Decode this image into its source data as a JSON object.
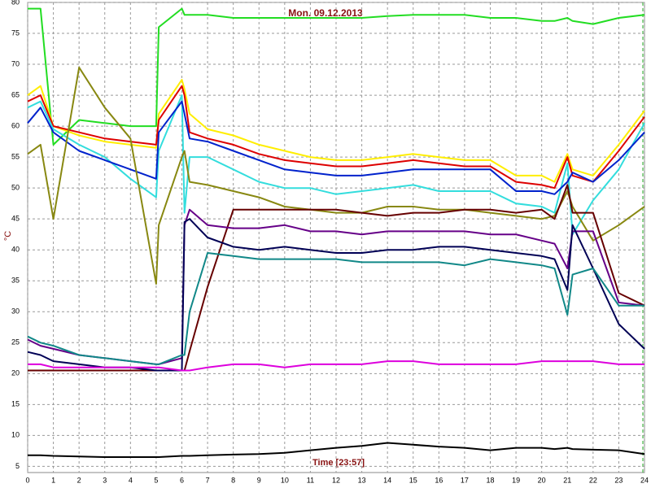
{
  "chart_data": {
    "type": "line",
    "title": "Mon. 09.12.2013",
    "x_label": "Time [23:57]",
    "y_label": "°C",
    "x": [
      0,
      0.5,
      1,
      2,
      3,
      4,
      5,
      5.1,
      6,
      6.1,
      6.3,
      7,
      8,
      9,
      10,
      11,
      12,
      13,
      14,
      15,
      16,
      17,
      18,
      19,
      20,
      20.5,
      21,
      21.2,
      22,
      23,
      24
    ],
    "xlim": [
      0,
      24
    ],
    "xticks": [
      0,
      1,
      2,
      3,
      4,
      5,
      6,
      7,
      8,
      9,
      10,
      11,
      12,
      13,
      14,
      15,
      16,
      17,
      18,
      19,
      20,
      21,
      22,
      23,
      24
    ],
    "ylim": [
      4,
      80
    ],
    "yticks": [
      5,
      10,
      15,
      20,
      25,
      30,
      35,
      40,
      45,
      50,
      55,
      60,
      65,
      70,
      75,
      80
    ],
    "grid": true,
    "series": [
      {
        "color": "#22dd22",
        "values": [
          79,
          79,
          57,
          61,
          60.5,
          60,
          60,
          76,
          79,
          78,
          78,
          78,
          77.5,
          77.5,
          77.5,
          77.5,
          77.5,
          77.5,
          77.8,
          78,
          78,
          78,
          77.5,
          77.5,
          77,
          77,
          77.5,
          77,
          76.5,
          77.5,
          78
        ]
      },
      {
        "color": "#ffee00",
        "values": [
          65,
          66.5,
          60,
          58.5,
          57.5,
          57,
          56.5,
          62,
          67.5,
          66,
          62,
          59.5,
          58.5,
          57,
          56,
          55,
          54.5,
          54.5,
          55,
          55.5,
          55,
          54.5,
          54.5,
          52,
          52,
          51,
          55.5,
          53,
          52,
          57,
          62.5
        ]
      },
      {
        "color": "#dd0000",
        "values": [
          64,
          65,
          60,
          59,
          58,
          57.5,
          57,
          61,
          66.5,
          65,
          59,
          58,
          57,
          55.5,
          54.5,
          54,
          53.5,
          53.5,
          54,
          54.5,
          54,
          53.5,
          53.5,
          51,
          50.5,
          50,
          55,
          52,
          51,
          56,
          61.5
        ]
      },
      {
        "color": "#33dddd",
        "values": [
          63,
          64,
          59.5,
          57,
          55,
          51.5,
          48.5,
          56,
          65,
          46,
          55,
          55,
          53,
          51,
          50,
          50,
          49,
          49.5,
          50,
          50.5,
          49.5,
          49.5,
          49.5,
          47.5,
          47,
          46,
          54,
          42.5,
          48,
          53,
          60.5
        ]
      },
      {
        "color": "#0022cc",
        "values": [
          60.5,
          63,
          59,
          56,
          54.5,
          53,
          51.5,
          59,
          64,
          62,
          58,
          57.5,
          56,
          54.5,
          53,
          52.5,
          52,
          52,
          52.5,
          53,
          53,
          53,
          53,
          49.5,
          49.5,
          49,
          51,
          52.5,
          51,
          54.5,
          59
        ]
      },
      {
        "color": "#888811",
        "values": [
          55.5,
          57,
          45,
          69.5,
          63,
          58,
          34.5,
          44,
          55,
          56,
          51,
          50.5,
          49.5,
          48.5,
          47,
          46.5,
          46,
          46,
          47,
          47,
          46.5,
          46.5,
          46,
          45.5,
          45,
          45.5,
          49.5,
          47,
          41.5,
          44,
          47
        ]
      },
      {
        "color": "#660000",
        "values": [
          20.5,
          20.5,
          20.5,
          20.5,
          20.5,
          20.5,
          20.5,
          20.5,
          20.5,
          20.5,
          23.6,
          34,
          46.5,
          46.5,
          46.5,
          46.5,
          46.5,
          46,
          45.5,
          46,
          46,
          46.5,
          46.5,
          46,
          46.5,
          45,
          50.5,
          46,
          46,
          33,
          31
        ]
      },
      {
        "color": "#660088",
        "values": [
          25.5,
          24.5,
          24,
          23,
          22.5,
          22,
          21.5,
          21.5,
          22.5,
          44,
          46.5,
          44,
          43.5,
          43.5,
          44,
          43,
          43,
          42.5,
          43,
          43,
          43,
          43,
          42.5,
          42.5,
          41.5,
          41,
          37,
          43,
          43,
          31.5,
          31
        ]
      },
      {
        "color": "#000055",
        "values": [
          23.5,
          23,
          22,
          21.5,
          21,
          21,
          20.5,
          20.5,
          20.5,
          44.5,
          45,
          42,
          40.5,
          40,
          40.5,
          40,
          39.5,
          39.5,
          40,
          40,
          40.5,
          40.5,
          40,
          39.5,
          39,
          38.5,
          33.5,
          44,
          37,
          28,
          24
        ]
      },
      {
        "color": "#118888",
        "values": [
          26,
          25,
          24.5,
          23,
          22.5,
          22,
          21.5,
          21.5,
          23,
          23,
          30,
          39.5,
          39,
          38.5,
          38.5,
          38.5,
          38.5,
          38,
          38,
          38,
          38,
          37.5,
          38.5,
          38,
          37.5,
          37,
          29.5,
          36,
          37,
          31,
          31
        ]
      },
      {
        "color": "#dd00dd",
        "values": [
          21.5,
          21.5,
          21,
          21,
          21,
          21,
          21,
          21,
          20.5,
          20.5,
          20.5,
          21,
          21.5,
          21.5,
          21,
          21.5,
          21.5,
          21.5,
          22,
          22,
          21.5,
          21.5,
          21.5,
          21.5,
          22,
          22,
          22,
          22,
          22,
          21.5,
          21.5
        ]
      },
      {
        "color": "#000000",
        "values": [
          6.8,
          6.8,
          6.7,
          6.6,
          6.5,
          6.5,
          6.5,
          6.5,
          6.7,
          6.7,
          6.7,
          6.8,
          6.9,
          7,
          7.2,
          7.6,
          8,
          8.3,
          8.8,
          8.5,
          8.2,
          8,
          7.6,
          8,
          8,
          7.8,
          8,
          7.8,
          7.7,
          7.6,
          7
        ]
      }
    ]
  }
}
